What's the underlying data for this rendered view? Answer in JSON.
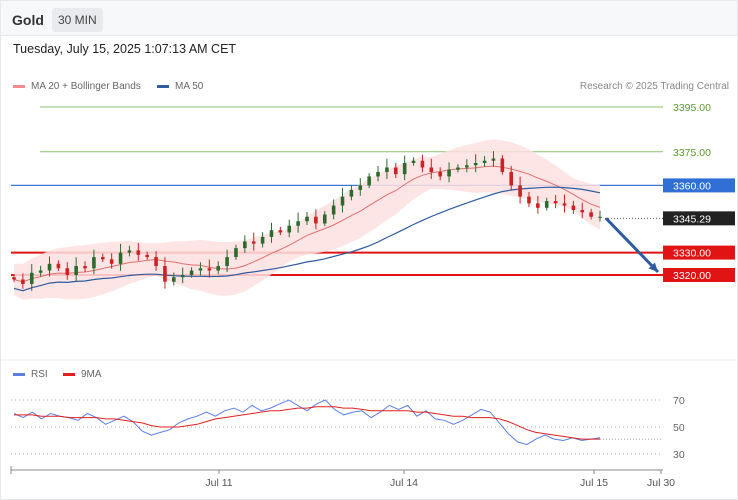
{
  "header": {
    "symbol": "Gold",
    "timeframe": "30 MIN"
  },
  "timestamp": "Tuesday, July 15, 2025 1:07:13 AM CET",
  "legend": {
    "ma20": "MA 20 + Bollinger Bands",
    "ma50": "MA 50",
    "credit": "Research © 2025 Trading Central"
  },
  "rsi_legend": {
    "rsi": "RSI",
    "ma9": "9MA"
  },
  "colors": {
    "up": "#2d6a2d",
    "down": "#c22",
    "ma20": "#e07070",
    "band_fill": "#fde0e0",
    "ma50": "#2f5c9e",
    "resistance_green": "#8cc06a",
    "blue_level": "#3a78d4",
    "support_red": "#e01414",
    "arrow": "#2f5c9e",
    "rsi": "#5b7fe0",
    "rsi_ma": "#e02020"
  },
  "chart_data": [
    {
      "type": "candlestick",
      "title": "Gold",
      "timeframe": "30 MIN",
      "x_labels": [
        "Jul 11",
        "Jul 14",
        "Jul 15",
        "Jul 30"
      ],
      "ylim": [
        3290,
        3405
      ],
      "current_price": 3345.29,
      "levels": [
        {
          "value": 3395.0,
          "label": "3395.00",
          "style": "resistance-green"
        },
        {
          "value": 3375.0,
          "label": "3375.00",
          "style": "resistance-green"
        },
        {
          "value": 3360.0,
          "label": "3360.00",
          "style": "pivot-blue"
        },
        {
          "value": 3345.29,
          "label": "3345.29",
          "style": "current-price"
        },
        {
          "value": 3330.0,
          "label": "3330.00",
          "style": "support-red"
        },
        {
          "value": 3320.0,
          "label": "3320.00",
          "style": "support-red"
        }
      ],
      "close_path": [
        3318,
        3316,
        3321,
        3322,
        3325,
        3323,
        3320,
        3324,
        3323,
        3328,
        3327,
        3325,
        3330,
        3331,
        3329,
        3328,
        3324,
        3317,
        3319,
        3320,
        3322,
        3323,
        3322,
        3324,
        3328,
        3332,
        3335,
        3334,
        3337,
        3340,
        3339,
        3342,
        3344,
        3346,
        3343,
        3347,
        3351,
        3355,
        3358,
        3360,
        3364,
        3366,
        3368,
        3365,
        3370,
        3371,
        3368,
        3366,
        3364,
        3367,
        3368,
        3369,
        3370,
        3371,
        3372,
        3366,
        3360,
        3355,
        3352,
        3350,
        3353,
        3352,
        3351,
        3349,
        3348,
        3346,
        3346
      ],
      "forecast_arrow": {
        "from": 3345.29,
        "to": 3320.0
      }
    },
    {
      "type": "line",
      "title": "RSI",
      "series": [
        {
          "name": "RSI",
          "values": [
            60,
            57,
            61,
            56,
            60,
            58,
            57,
            55,
            60,
            57,
            52,
            55,
            58,
            54,
            47,
            44,
            46,
            48,
            53,
            56,
            58,
            61,
            58,
            62,
            64,
            61,
            66,
            62,
            64,
            67,
            70,
            66,
            62,
            67,
            70,
            63,
            59,
            61,
            62,
            57,
            61,
            66,
            63,
            66,
            58,
            62,
            56,
            55,
            52,
            55,
            59,
            63,
            61,
            53,
            45,
            39,
            37,
            41,
            44,
            41,
            40,
            42,
            40,
            41,
            42
          ]
        },
        {
          "name": "9MA",
          "values": [
            59,
            59,
            59,
            58,
            58,
            58,
            57,
            57,
            57,
            57,
            56,
            56,
            55,
            54,
            53,
            51,
            50,
            50,
            50,
            51,
            52,
            54,
            56,
            57,
            58,
            59,
            60,
            61,
            62,
            62,
            63,
            64,
            64,
            65,
            65,
            65,
            64,
            64,
            63,
            62,
            62,
            62,
            62,
            62,
            61,
            61,
            60,
            59,
            58,
            58,
            57,
            57,
            57,
            56,
            54,
            51,
            48,
            46,
            45,
            44,
            43,
            42,
            41,
            41,
            41
          ]
        }
      ],
      "ylim": [
        25,
        75
      ],
      "yticks": [
        "70",
        "50",
        "30"
      ]
    }
  ]
}
